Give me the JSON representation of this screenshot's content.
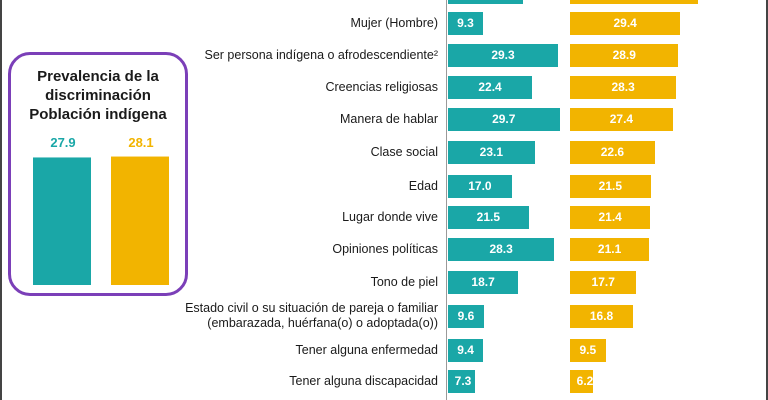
{
  "colors": {
    "series0": "#1aa7a7",
    "series1": "#f2b400",
    "box_border": "#7b3fb8"
  },
  "prevalence": {
    "title_lines": [
      "Prevalencia de la",
      "discriminación",
      "Población indígena"
    ],
    "values": [
      "27.9",
      "28.1"
    ]
  },
  "chart_data": [
    {
      "type": "bar",
      "title": "Prevalencia de la discriminación Población indígena",
      "categories": [
        "",
        ""
      ],
      "values": [
        27.9,
        28.1
      ],
      "ylim": [
        0,
        40
      ]
    },
    {
      "type": "bar",
      "orientation": "horizontal",
      "categories": [
        "",
        "Mujer (Hombre)",
        "Ser persona indígena o afrodescendiente²",
        "Creencias religiosas",
        "Manera de hablar",
        "Clase social",
        "Edad",
        "Lugar donde vive",
        "Opiniones políticas",
        "Tono de piel",
        "Estado civil o su situación de pareja o familiar\n(embarazada, huérfana(o) o adoptada(o))",
        "Tener alguna enfermedad",
        "Tener alguna discapacidad"
      ],
      "series": [
        {
          "values": [
            null,
            9.3,
            29.3,
            22.4,
            29.7,
            23.1,
            17.0,
            21.5,
            28.3,
            18.7,
            9.6,
            9.4,
            7.3
          ]
        },
        {
          "values": [
            null,
            29.4,
            28.9,
            28.3,
            27.4,
            22.6,
            21.5,
            21.4,
            21.1,
            17.7,
            16.8,
            9.5,
            6.2
          ]
        }
      ],
      "value_labels": [
        [
          "",
          "9.3",
          "29.3",
          "22.4",
          "29.7",
          "23.1",
          "17.0",
          "21.5",
          "28.3",
          "18.7",
          "9.6",
          "9.4",
          "7.3"
        ],
        [
          "",
          "29.4",
          "28.9",
          "28.3",
          "27.4",
          "22.6",
          "21.5",
          "21.4",
          "21.1",
          "17.7",
          "16.8",
          "9.5",
          "6.2"
        ]
      ],
      "xlim": [
        0,
        40
      ]
    }
  ]
}
